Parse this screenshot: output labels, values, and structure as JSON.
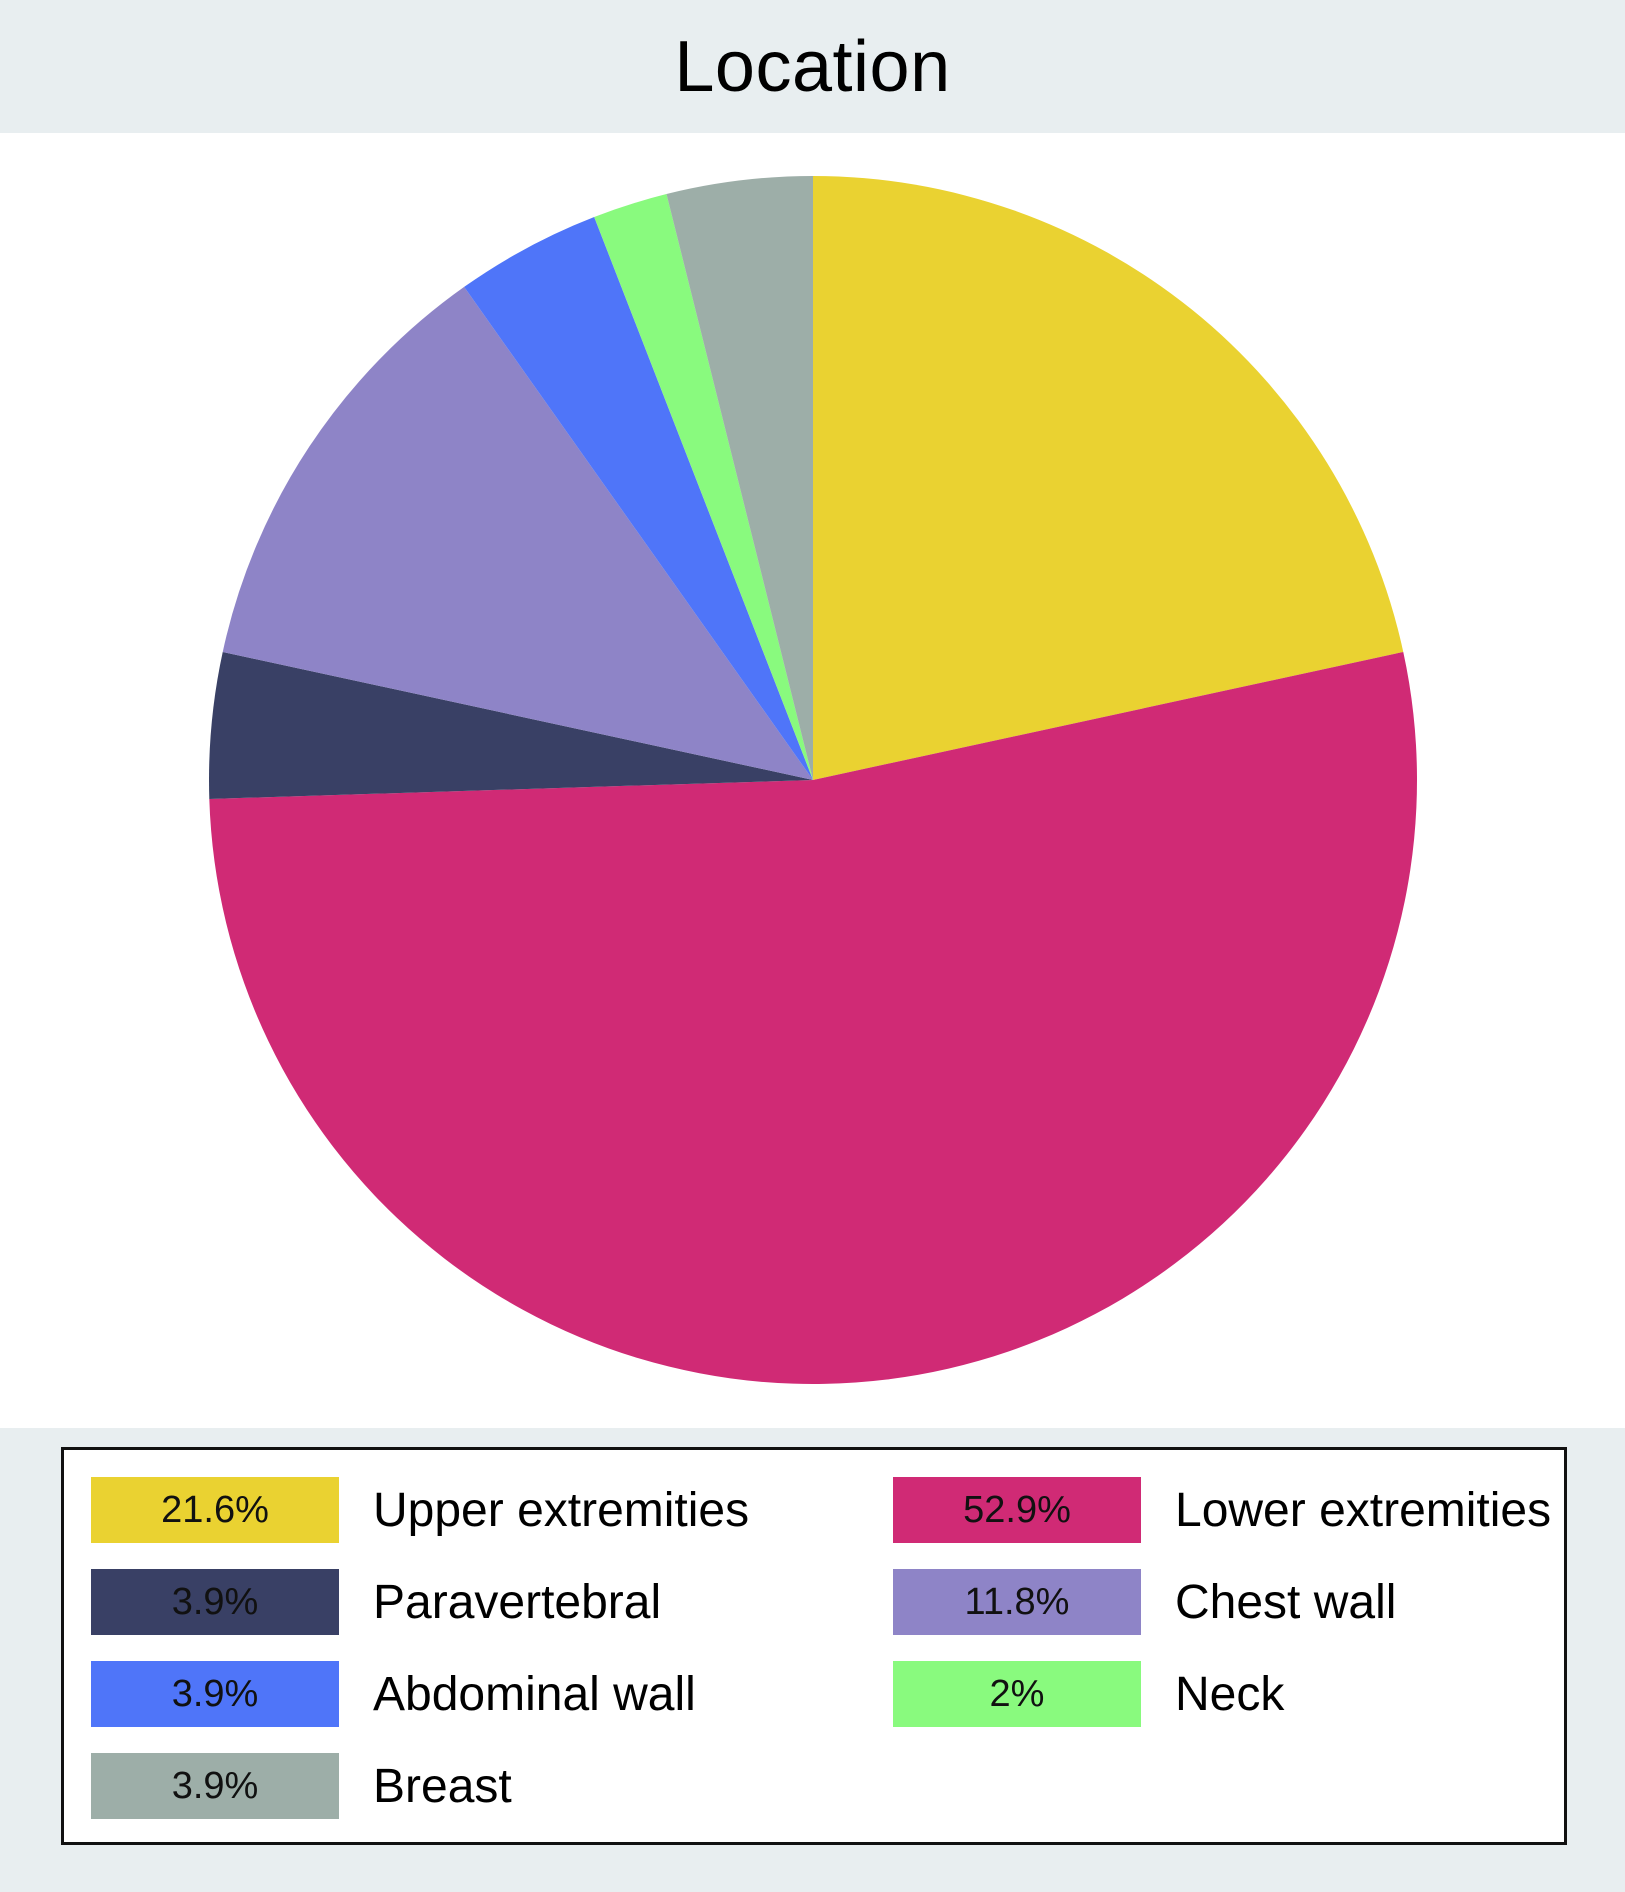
{
  "chart_data": {
    "type": "pie",
    "title": "Location",
    "start": "12 o'clock, clockwise",
    "slices": [
      {
        "label": "Upper extremities",
        "value": 21.6,
        "value_label": "21.6%",
        "color": "#ead231"
      },
      {
        "label": "Lower extremities",
        "value": 52.9,
        "value_label": "52.9%",
        "color": "#d02a75"
      },
      {
        "label": "Paravertebral",
        "value": 3.9,
        "value_label": "3.9%",
        "color": "#394065"
      },
      {
        "label": "Chest wall",
        "value": 11.8,
        "value_label": "11.8%",
        "color": "#8e84c7"
      },
      {
        "label": "Abdominal wall",
        "value": 3.9,
        "value_label": "3.9%",
        "color": "#4f75f9"
      },
      {
        "label": "Neck",
        "value": 2,
        "value_label": "2%",
        "color": "#89fa7e"
      },
      {
        "label": "Breast",
        "value": 3.9,
        "value_label": "3.9%",
        "color": "#9daea8"
      }
    ],
    "legend": {
      "placement": "bottom",
      "columns": 2,
      "rows": [
        [
          "Upper extremities",
          "Lower extremities"
        ],
        [
          "Paravertebral",
          "Chest wall"
        ],
        [
          "Abdominal wall",
          "Neck"
        ],
        [
          "Breast"
        ]
      ]
    }
  }
}
